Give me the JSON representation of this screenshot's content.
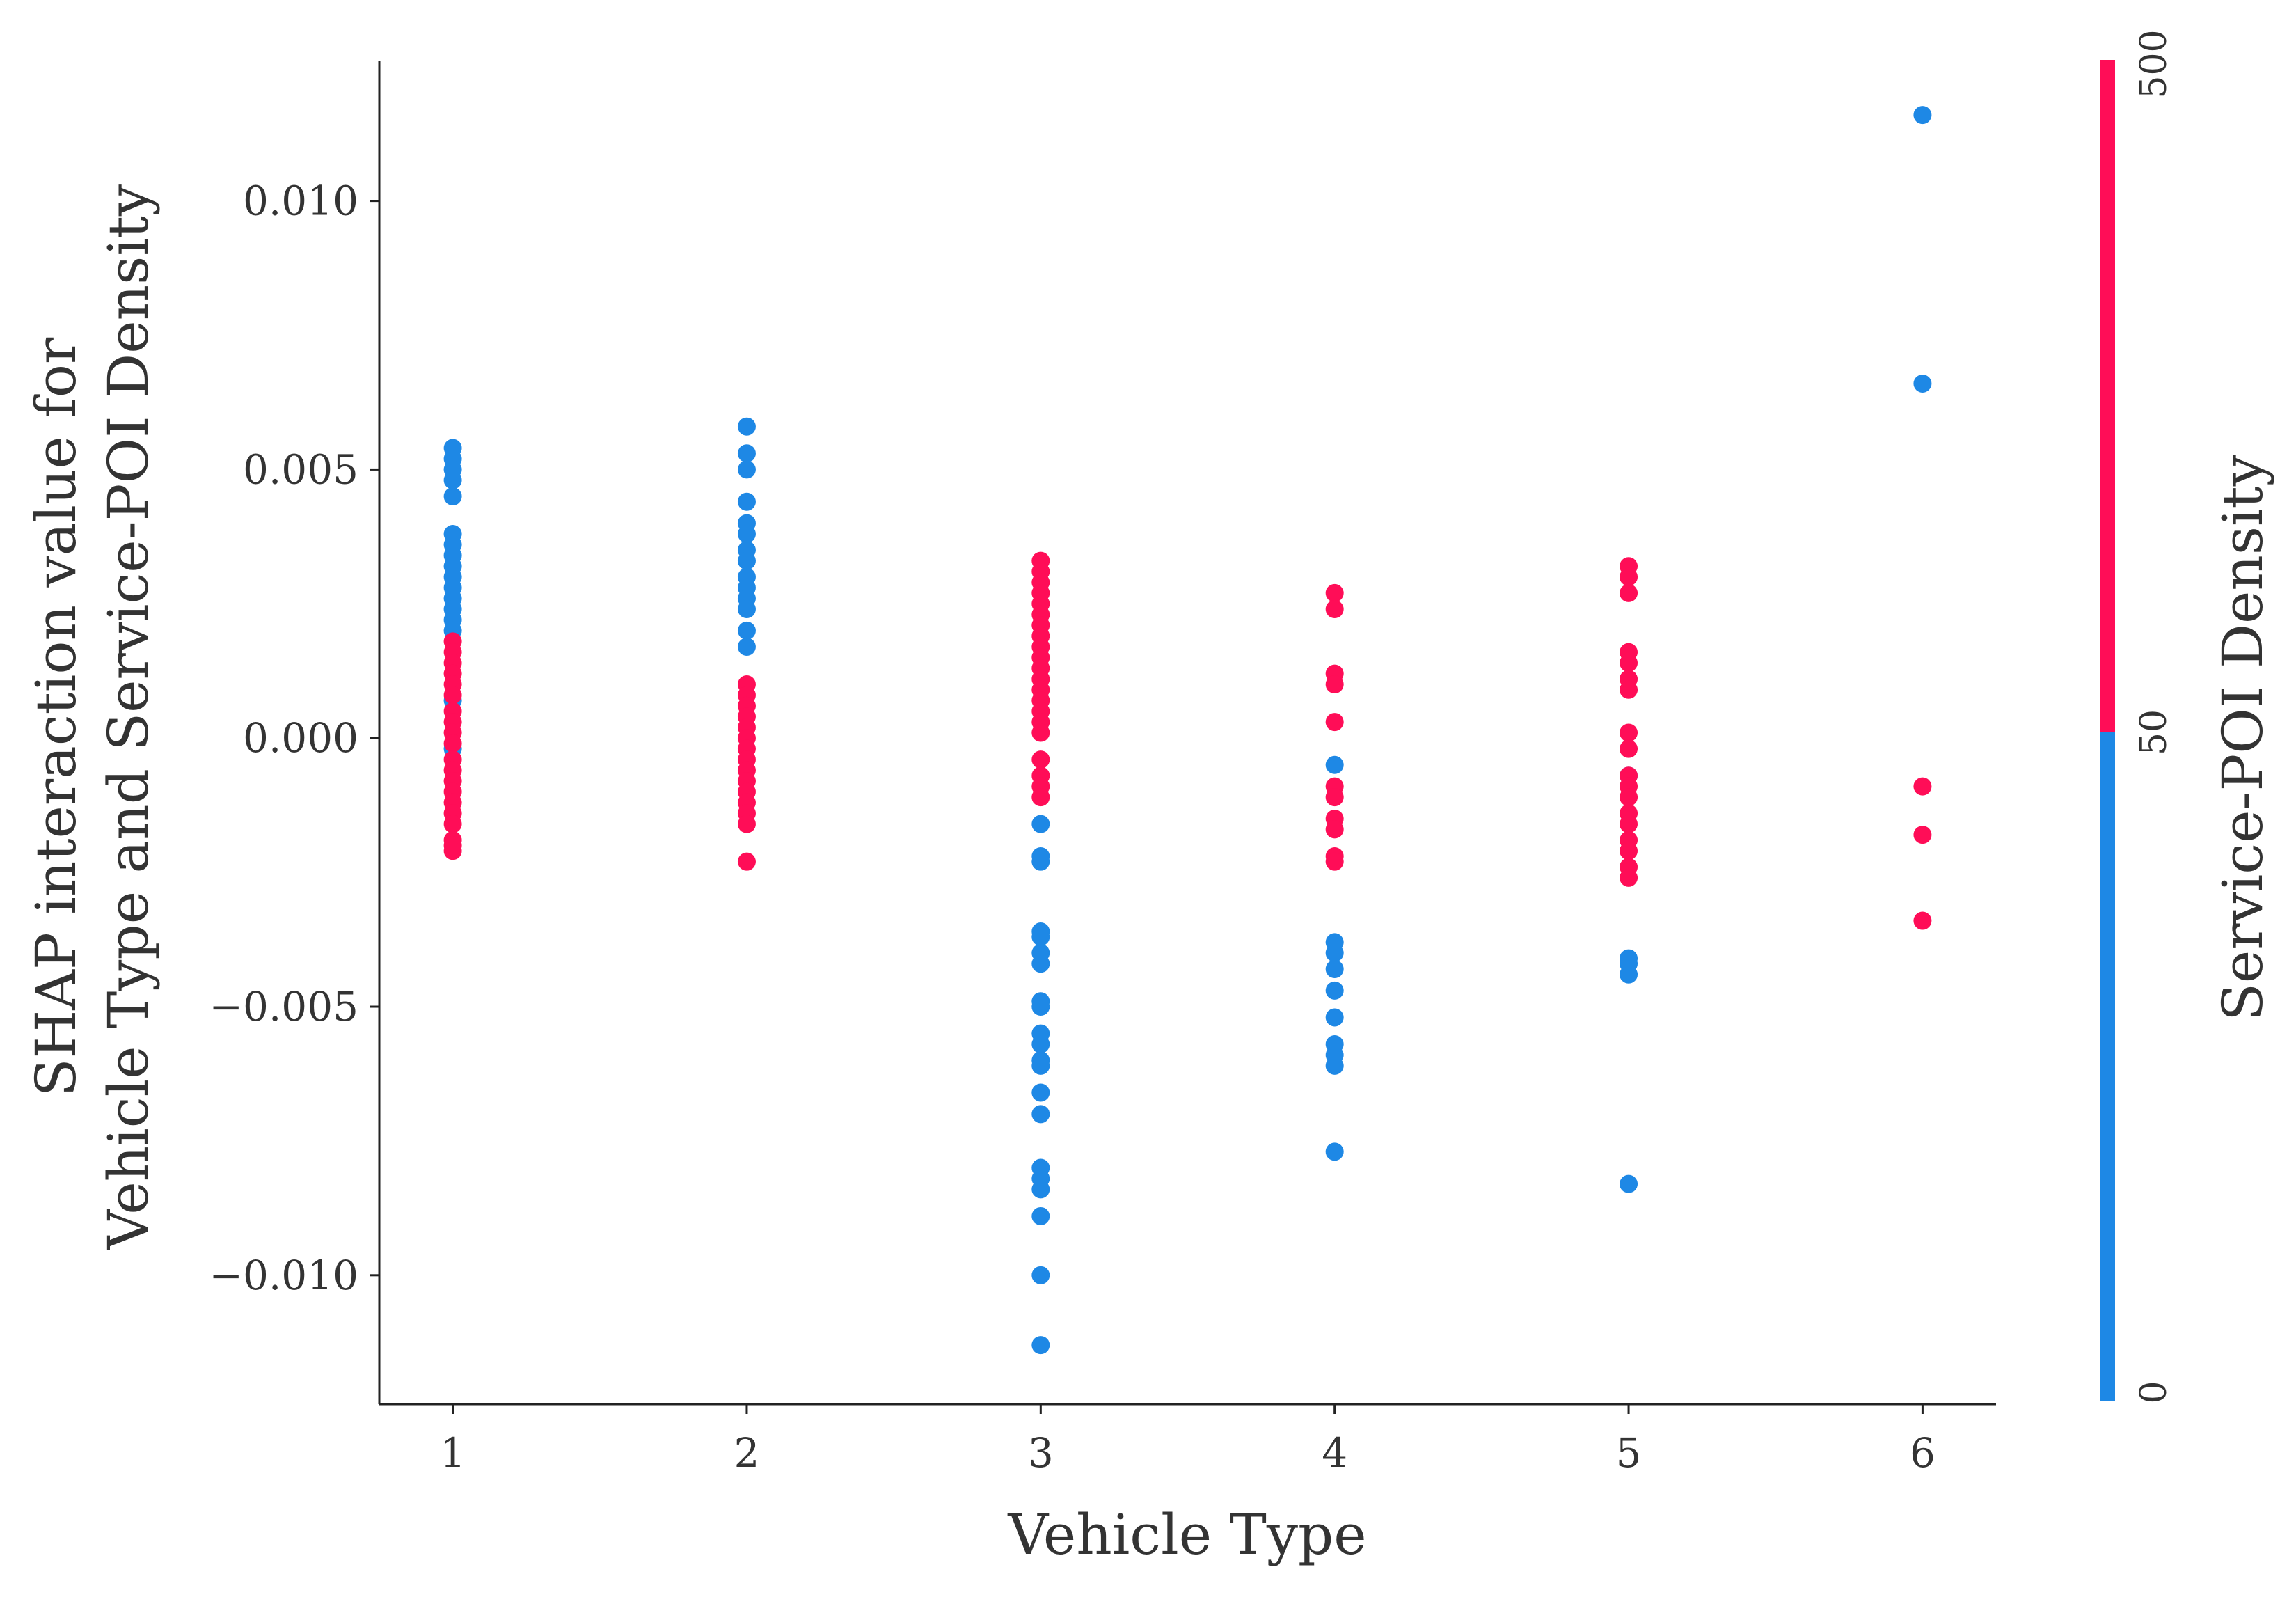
{
  "chart_data": {
    "type": "scatter",
    "title": "",
    "xlabel": "Vehicle Type",
    "ylabel_line1": "SHAP interaction value for",
    "ylabel_line2": "Vehicle Type and Service-POI Density",
    "xlim": [
      0.75,
      6.25
    ],
    "ylim": [
      -0.0124,
      0.0126
    ],
    "x_ticks": [
      1,
      2,
      3,
      4,
      5,
      6
    ],
    "x_tick_labels": [
      "1",
      "2",
      "3",
      "4",
      "5",
      "6"
    ],
    "y_ticks": [
      -0.01,
      -0.005,
      0.0,
      0.005,
      0.01
    ],
    "y_tick_labels": [
      "−0.010",
      "−0.005",
      "0.000",
      "0.005",
      "0.010"
    ],
    "grid": false,
    "colorbar": {
      "label": "Service-POI Density",
      "tick_labels": [
        "0",
        "50",
        "500"
      ],
      "low_color": "#1e88e5",
      "high_color": "#ff0d57"
    },
    "series": [
      {
        "color": "#1e88e5",
        "points": [
          [
            1,
            0.0054
          ],
          [
            1,
            0.0052
          ],
          [
            1,
            0.005
          ],
          [
            1,
            0.0048
          ],
          [
            1,
            0.0045
          ],
          [
            1,
            0.0038
          ],
          [
            1,
            0.0036
          ],
          [
            1,
            0.0034
          ],
          [
            1,
            0.0032
          ],
          [
            1,
            0.003
          ],
          [
            1,
            0.0028
          ],
          [
            1,
            0.0026
          ],
          [
            1,
            0.0024
          ],
          [
            1,
            0.0022
          ],
          [
            1,
            0.002
          ],
          [
            1,
            0.0007
          ],
          [
            1,
            -0.0002
          ],
          [
            2,
            0.0058
          ],
          [
            2,
            0.0053
          ],
          [
            2,
            0.005
          ],
          [
            2,
            0.0044
          ],
          [
            2,
            0.004
          ],
          [
            2,
            0.0038
          ],
          [
            2,
            0.0035
          ],
          [
            2,
            0.0033
          ],
          [
            2,
            0.003
          ],
          [
            2,
            0.0028
          ],
          [
            2,
            0.0026
          ],
          [
            2,
            0.0024
          ],
          [
            2,
            0.002
          ],
          [
            2,
            0.0017
          ],
          [
            3,
            -0.0016
          ],
          [
            3,
            -0.0022
          ],
          [
            3,
            -0.0023
          ],
          [
            3,
            -0.0036
          ],
          [
            3,
            -0.0037
          ],
          [
            3,
            -0.004
          ],
          [
            3,
            -0.0042
          ],
          [
            3,
            -0.0049
          ],
          [
            3,
            -0.005
          ],
          [
            3,
            -0.0055
          ],
          [
            3,
            -0.0057
          ],
          [
            3,
            -0.006
          ],
          [
            3,
            -0.0061
          ],
          [
            3,
            -0.0066
          ],
          [
            3,
            -0.007
          ],
          [
            3,
            -0.008
          ],
          [
            3,
            -0.0082
          ],
          [
            3,
            -0.0084
          ],
          [
            3,
            -0.0089
          ],
          [
            3,
            -0.01
          ],
          [
            3,
            -0.0113
          ],
          [
            4,
            -0.0005
          ],
          [
            4,
            -0.0038
          ],
          [
            4,
            -0.004
          ],
          [
            4,
            -0.0043
          ],
          [
            4,
            -0.0047
          ],
          [
            4,
            -0.0052
          ],
          [
            4,
            -0.0057
          ],
          [
            4,
            -0.0059
          ],
          [
            4,
            -0.0061
          ],
          [
            4,
            -0.0077
          ],
          [
            5,
            -0.0007
          ],
          [
            5,
            -0.0041
          ],
          [
            5,
            -0.0042
          ],
          [
            5,
            -0.0044
          ],
          [
            5,
            -0.0083
          ],
          [
            6,
            0.0116
          ],
          [
            6,
            0.0066
          ]
        ]
      },
      {
        "color": "#ff0d57",
        "points": [
          [
            1,
            0.0018
          ],
          [
            1,
            0.0016
          ],
          [
            1,
            0.0014
          ],
          [
            1,
            0.0012
          ],
          [
            1,
            0.001
          ],
          [
            1,
            0.0008
          ],
          [
            1,
            0.0005
          ],
          [
            1,
            0.0003
          ],
          [
            1,
            0.0001
          ],
          [
            1,
            -0.0001
          ],
          [
            1,
            -0.0004
          ],
          [
            1,
            -0.0006
          ],
          [
            1,
            -0.0008
          ],
          [
            1,
            -0.001
          ],
          [
            1,
            -0.0012
          ],
          [
            1,
            -0.0014
          ],
          [
            1,
            -0.0016
          ],
          [
            1,
            -0.0019
          ],
          [
            1,
            -0.002
          ],
          [
            1,
            -0.0021
          ],
          [
            2,
            0.001
          ],
          [
            2,
            0.0008
          ],
          [
            2,
            0.0006
          ],
          [
            2,
            0.0004
          ],
          [
            2,
            0.0002
          ],
          [
            2,
            0.0
          ],
          [
            2,
            -0.0002
          ],
          [
            2,
            -0.0004
          ],
          [
            2,
            -0.0006
          ],
          [
            2,
            -0.0008
          ],
          [
            2,
            -0.001
          ],
          [
            2,
            -0.0012
          ],
          [
            2,
            -0.0014
          ],
          [
            2,
            -0.0016
          ],
          [
            2,
            -0.0023
          ],
          [
            3,
            0.0033
          ],
          [
            3,
            0.0031
          ],
          [
            3,
            0.0029
          ],
          [
            3,
            0.0027
          ],
          [
            3,
            0.0025
          ],
          [
            3,
            0.0023
          ],
          [
            3,
            0.0021
          ],
          [
            3,
            0.0019
          ],
          [
            3,
            0.0017
          ],
          [
            3,
            0.0015
          ],
          [
            3,
            0.0013
          ],
          [
            3,
            0.0011
          ],
          [
            3,
            0.0009
          ],
          [
            3,
            0.0007
          ],
          [
            3,
            0.0005
          ],
          [
            3,
            0.0003
          ],
          [
            3,
            0.0001
          ],
          [
            3,
            -0.0004
          ],
          [
            3,
            -0.0007
          ],
          [
            3,
            -0.0009
          ],
          [
            3,
            -0.0011
          ],
          [
            4,
            0.0027
          ],
          [
            4,
            0.0024
          ],
          [
            4,
            0.0012
          ],
          [
            4,
            0.001
          ],
          [
            4,
            0.0003
          ],
          [
            4,
            -0.0009
          ],
          [
            4,
            -0.0011
          ],
          [
            4,
            -0.0015
          ],
          [
            4,
            -0.0017
          ],
          [
            4,
            -0.0022
          ],
          [
            4,
            -0.0023
          ],
          [
            5,
            0.0032
          ],
          [
            5,
            0.003
          ],
          [
            5,
            0.0027
          ],
          [
            5,
            0.0016
          ],
          [
            5,
            0.0014
          ],
          [
            5,
            0.0011
          ],
          [
            5,
            0.0009
          ],
          [
            5,
            0.0001
          ],
          [
            5,
            -0.0002
          ],
          [
            5,
            -0.0007
          ],
          [
            5,
            -0.0009
          ],
          [
            5,
            -0.0011
          ],
          [
            5,
            -0.0014
          ],
          [
            5,
            -0.0016
          ],
          [
            5,
            -0.0019
          ],
          [
            5,
            -0.0021
          ],
          [
            5,
            -0.0024
          ],
          [
            5,
            -0.0026
          ],
          [
            6,
            -0.0009
          ],
          [
            6,
            -0.0018
          ],
          [
            6,
            -0.0034
          ]
        ]
      }
    ]
  }
}
